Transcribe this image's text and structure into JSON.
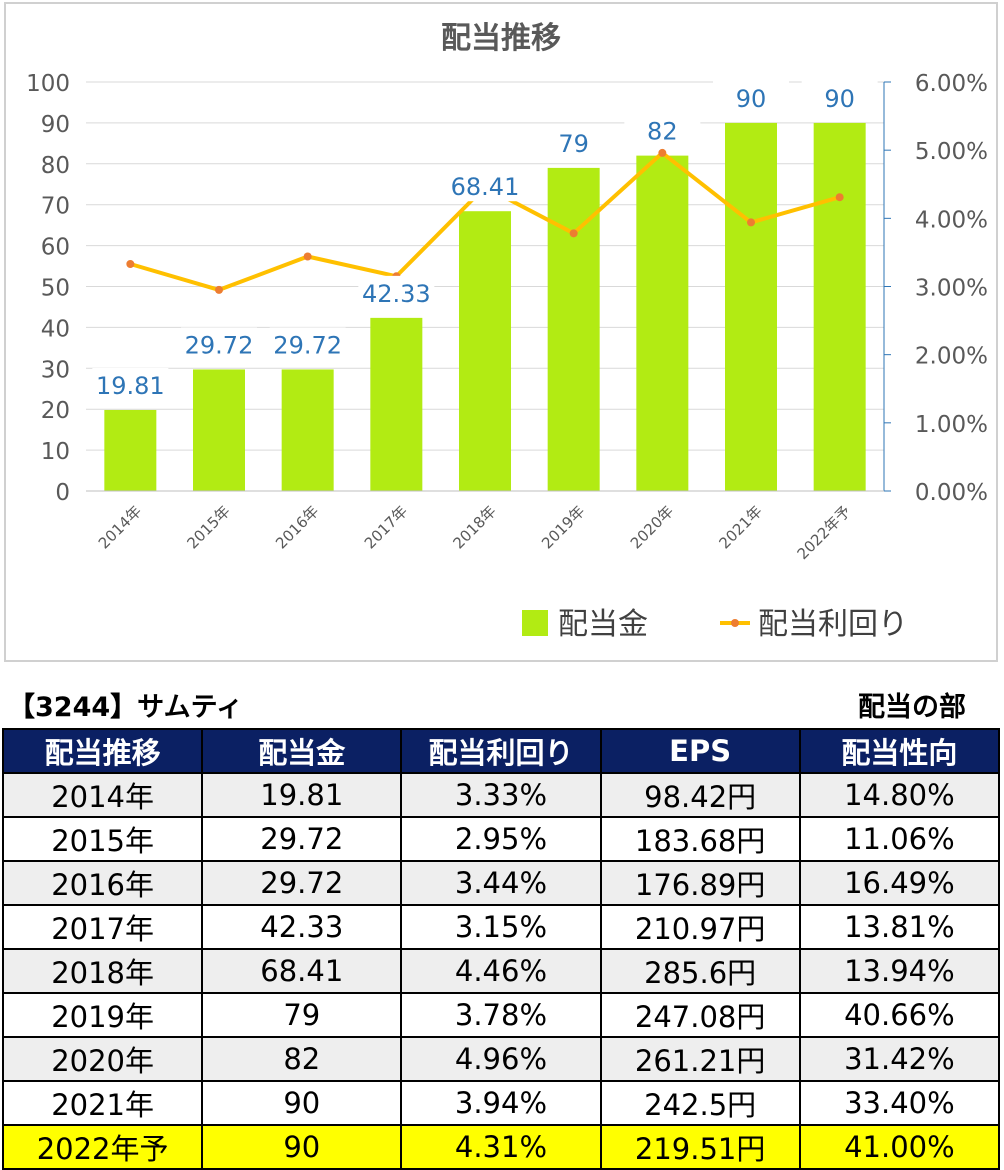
{
  "chart_data": {
    "type": "bar",
    "title": "配当推移",
    "categories": [
      "2014年",
      "2015年",
      "2016年",
      "2017年",
      "2018年",
      "2019年",
      "2020年",
      "2021年",
      "2022年予"
    ],
    "series": [
      {
        "name": "配当金",
        "type": "bar",
        "axis": "left",
        "color": "#b2eb13",
        "values": [
          19.81,
          29.72,
          29.72,
          42.33,
          68.41,
          79,
          82,
          90,
          90
        ],
        "data_labels": [
          "19.81",
          "29.72",
          "29.72",
          "42.33",
          "68.41",
          "79",
          "82",
          "90",
          "90"
        ]
      },
      {
        "name": "配当利回り",
        "type": "line",
        "axis": "right",
        "color": "#ffc000",
        "marker_color": "#ed7d31",
        "values": [
          3.33,
          2.95,
          3.44,
          3.15,
          4.46,
          3.78,
          4.96,
          3.94,
          4.31
        ]
      }
    ],
    "ylim": [
      0,
      100
    ],
    "yticks": [
      0,
      10,
      20,
      30,
      40,
      50,
      60,
      70,
      80,
      90,
      100
    ],
    "ytick_labels": [
      "0",
      "10",
      "20",
      "30",
      "40",
      "50",
      "60",
      "70",
      "80",
      "90",
      "100"
    ],
    "y2lim": [
      0,
      6
    ],
    "y2ticks": [
      0,
      1,
      2,
      3,
      4,
      5,
      6
    ],
    "y2tick_labels": [
      "0.00%",
      "1.00%",
      "2.00%",
      "3.00%",
      "4.00%",
      "5.00%",
      "6.00%"
    ],
    "grid": true,
    "legend_position": "bottom-right"
  },
  "table": {
    "company": "【3244】サムティ",
    "section": "配当の部",
    "headers": [
      "配当推移",
      "配当金",
      "配当利回り",
      "EPS",
      "配当性向"
    ],
    "rows": [
      [
        "2014年",
        "19.81",
        "3.33%",
        "98.42円",
        "14.80%"
      ],
      [
        "2015年",
        "29.72",
        "2.95%",
        "183.68円",
        "11.06%"
      ],
      [
        "2016年",
        "29.72",
        "3.44%",
        "176.89円",
        "16.49%"
      ],
      [
        "2017年",
        "42.33",
        "3.15%",
        "210.97円",
        "13.81%"
      ],
      [
        "2018年",
        "68.41",
        "4.46%",
        "285.6円",
        "13.94%"
      ],
      [
        "2019年",
        "79",
        "3.78%",
        "247.08円",
        "40.66%"
      ],
      [
        "2020年",
        "82",
        "4.96%",
        "261.21円",
        "31.42%"
      ],
      [
        "2021年",
        "90",
        "3.94%",
        "242.5円",
        "33.40%"
      ],
      [
        "2022年予",
        "90",
        "4.31%",
        "219.51円",
        "41.00%"
      ]
    ],
    "colors": {
      "header_bg": "#0b2063",
      "highlight_row": "#ffff00"
    }
  }
}
